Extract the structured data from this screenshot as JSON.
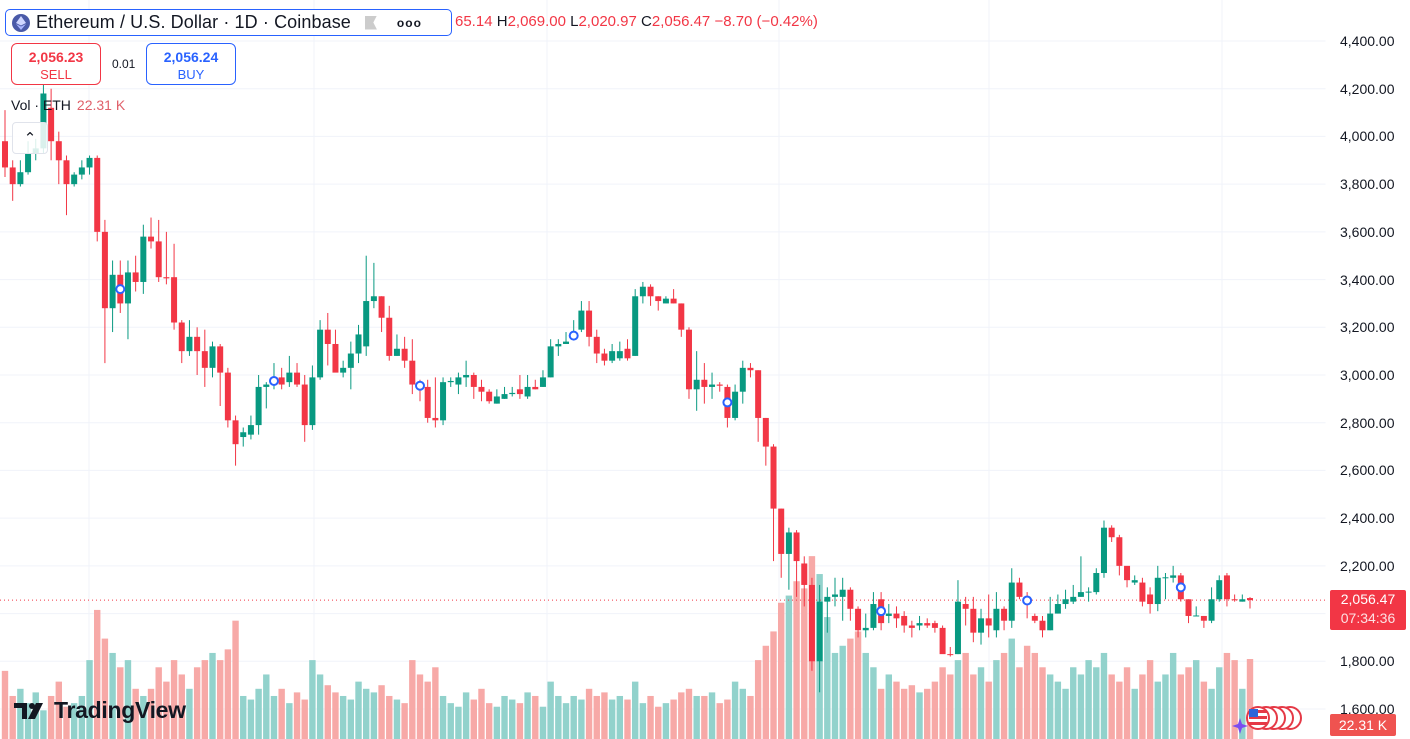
{
  "header": {
    "symbol_title": "Ethereum / U.S. Dollar · 1D · Coinbase",
    "more_icon": "more-icon",
    "ohlc": {
      "open_partial": "65.14",
      "high_label": "H",
      "high": "2,069.00",
      "low_label": "L",
      "low": "2,020.97",
      "close_label": "C",
      "close": "2,056.47",
      "change": "−8.70 (−0.42%)"
    }
  },
  "trade": {
    "sell_price": "2,056.23",
    "sell_label": "SELL",
    "spread": "0.01",
    "buy_price": "2,056.24",
    "buy_label": "BUY"
  },
  "volume_legend": {
    "label": "Vol · ETH",
    "value": "22.31 K"
  },
  "price_axis": {
    "labels": [
      "4,400.00",
      "4,200.00",
      "4,000.00",
      "3,800.00",
      "3,600.00",
      "3,400.00",
      "3,200.00",
      "3,000.00",
      "2,800.00",
      "2,600.00",
      "2,400.00",
      "2,200.00",
      "1,800.00",
      "1,600.00"
    ],
    "current_price": "2,056.47",
    "countdown": "07:34:36",
    "current_volume": "22.31 K"
  },
  "logo_text": "TradingView",
  "colors": {
    "up": "#089981",
    "down": "#f23645",
    "up_volume": "#92d2cc",
    "down_volume": "#f7a9a7",
    "event": "#2962ff"
  },
  "chart_data": {
    "type": "candlestick",
    "title": "Ethereum / U.S. Dollar · 1D · Coinbase",
    "ylim": [
      1600,
      4400
    ],
    "y_ticks": [
      1600,
      1800,
      2000,
      2200,
      2400,
      2600,
      2800,
      3000,
      3200,
      3400,
      3600,
      3800,
      4000,
      4200,
      4400
    ],
    "current_price": 2056.47,
    "event_indices": [
      15,
      35,
      54,
      74,
      94,
      114,
      133,
      153
    ],
    "candles_ohlc": [
      [
        3980,
        4110,
        3830,
        3870
      ],
      [
        3870,
        3900,
        3730,
        3800
      ],
      [
        3800,
        3900,
        3790,
        3850
      ],
      [
        3850,
        3980,
        3840,
        3930
      ],
      [
        3930,
        3990,
        3900,
        3950
      ],
      [
        3950,
        4230,
        3930,
        4180
      ],
      [
        4120,
        4200,
        3900,
        3980
      ],
      [
        3980,
        4020,
        3800,
        3900
      ],
      [
        3900,
        3920,
        3670,
        3800
      ],
      [
        3800,
        3850,
        3790,
        3840
      ],
      [
        3840,
        3900,
        3820,
        3870
      ],
      [
        3870,
        3920,
        3840,
        3910
      ],
      [
        3910,
        3920,
        3560,
        3600
      ],
      [
        3600,
        3650,
        3050,
        3280
      ],
      [
        3280,
        3480,
        3180,
        3420
      ],
      [
        3420,
        3480,
        3260,
        3300
      ],
      [
        3300,
        3480,
        3150,
        3430
      ],
      [
        3430,
        3500,
        3350,
        3390
      ],
      [
        3390,
        3630,
        3340,
        3580
      ],
      [
        3580,
        3660,
        3530,
        3560
      ],
      [
        3560,
        3650,
        3390,
        3410
      ],
      [
        3410,
        3600,
        3380,
        3405
      ],
      [
        3410,
        3550,
        3190,
        3220
      ],
      [
        3220,
        3230,
        3050,
        3100
      ],
      [
        3100,
        3230,
        3080,
        3160
      ],
      [
        3160,
        3200,
        3000,
        3100
      ],
      [
        3100,
        3190,
        2950,
        3030
      ],
      [
        3030,
        3140,
        2990,
        3120
      ],
      [
        3120,
        3130,
        2870,
        3010
      ],
      [
        3010,
        3030,
        2780,
        2810
      ],
      [
        2810,
        2830,
        2620,
        2710
      ],
      [
        2740,
        2780,
        2700,
        2760
      ],
      [
        2750,
        2830,
        2730,
        2790
      ],
      [
        2790,
        3000,
        2750,
        2950
      ],
      [
        2950,
        2970,
        2860,
        2960
      ],
      [
        2960,
        3050,
        2940,
        2990
      ],
      [
        2990,
        3030,
        2940,
        2960
      ],
      [
        2970,
        3080,
        2950,
        3010
      ],
      [
        3010,
        3050,
        2950,
        2960
      ],
      [
        2960,
        3000,
        2720,
        2790
      ],
      [
        2790,
        3040,
        2770,
        2990
      ],
      [
        2990,
        3230,
        2980,
        3190
      ],
      [
        3190,
        3260,
        3040,
        3130
      ],
      [
        3130,
        3190,
        3030,
        3010
      ],
      [
        3010,
        3060,
        2990,
        3030
      ],
      [
        3030,
        3140,
        2940,
        3090
      ],
      [
        3090,
        3210,
        3050,
        3170
      ],
      [
        3120,
        3500,
        3080,
        3310
      ],
      [
        3310,
        3470,
        3280,
        3330
      ],
      [
        3330,
        3330,
        3180,
        3240
      ],
      [
        3240,
        3290,
        3060,
        3080
      ],
      [
        3080,
        3170,
        3080,
        3110
      ],
      [
        3110,
        3160,
        3030,
        3060
      ],
      [
        3060,
        3150,
        2920,
        2960
      ],
      [
        2960,
        2980,
        2890,
        2950
      ],
      [
        2950,
        2980,
        2800,
        2820
      ],
      [
        2820,
        2990,
        2780,
        2810
      ],
      [
        2810,
        2990,
        2790,
        2970
      ],
      [
        2970,
        2990,
        2950,
        2975
      ],
      [
        2960,
        3010,
        2920,
        2990
      ],
      [
        2990,
        3060,
        2950,
        3000
      ],
      [
        3000,
        3010,
        2900,
        2950
      ],
      [
        2950,
        2980,
        2890,
        2930
      ],
      [
        2930,
        2940,
        2880,
        2890
      ],
      [
        2880,
        2940,
        2880,
        2910
      ],
      [
        2900,
        2950,
        2900,
        2920
      ],
      [
        2920,
        2950,
        2910,
        2925
      ],
      [
        2940,
        3000,
        2900,
        2920
      ],
      [
        2910,
        3000,
        2900,
        2950
      ],
      [
        2950,
        2980,
        2940,
        2940
      ],
      [
        2950,
        3020,
        2950,
        2990
      ],
      [
        2990,
        3150,
        2990,
        3120
      ],
      [
        3120,
        3150,
        3080,
        3130
      ],
      [
        3130,
        3180,
        3130,
        3140
      ],
      [
        3150,
        3230,
        3150,
        3180
      ],
      [
        3190,
        3310,
        3180,
        3270
      ],
      [
        3270,
        3310,
        3120,
        3160
      ],
      [
        3160,
        3190,
        3050,
        3090
      ],
      [
        3090,
        3110,
        3040,
        3060
      ],
      [
        3060,
        3130,
        3050,
        3100
      ],
      [
        3070,
        3140,
        3060,
        3100
      ],
      [
        3110,
        3150,
        3060,
        3070
      ],
      [
        3080,
        3360,
        3080,
        3330
      ],
      [
        3330,
        3390,
        3300,
        3370
      ],
      [
        3370,
        3380,
        3290,
        3330
      ],
      [
        3330,
        3330,
        3270,
        3310
      ],
      [
        3300,
        3330,
        3300,
        3320
      ],
      [
        3320,
        3360,
        3300,
        3300
      ],
      [
        3300,
        3300,
        3160,
        3190
      ],
      [
        3190,
        3200,
        2900,
        2940
      ],
      [
        2940,
        3100,
        2850,
        2980
      ],
      [
        2980,
        3050,
        2880,
        2950
      ],
      [
        2950,
        3010,
        2900,
        2960
      ],
      [
        2960,
        2970,
        2930,
        2955
      ],
      [
        2950,
        2960,
        2780,
        2820
      ],
      [
        2820,
        2960,
        2810,
        2930
      ],
      [
        2930,
        3060,
        2880,
        3030
      ],
      [
        3030,
        3050,
        2990,
        3020
      ],
      [
        3020,
        3020,
        2720,
        2820
      ],
      [
        2820,
        2820,
        2620,
        2700
      ],
      [
        2700,
        2710,
        2220,
        2440
      ],
      [
        2440,
        2440,
        2150,
        2250
      ],
      [
        2250,
        2360,
        2100,
        2340
      ],
      [
        2340,
        2350,
        2070,
        2220
      ],
      [
        2210,
        2240,
        2030,
        2120
      ],
      [
        2120,
        2150,
        1760,
        1800
      ],
      [
        1800,
        2120,
        1670,
        2050
      ],
      [
        2050,
        2110,
        1920,
        2070
      ],
      [
        2070,
        2150,
        2030,
        2080
      ],
      [
        2070,
        2150,
        1970,
        2100
      ],
      [
        2100,
        2110,
        1970,
        2020
      ],
      [
        2020,
        2030,
        1900,
        1930
      ],
      [
        1930,
        2000,
        1900,
        1940
      ],
      [
        1940,
        2090,
        1930,
        2040
      ],
      [
        2060,
        2090,
        1930,
        1960
      ],
      [
        1990,
        2040,
        1960,
        2000
      ],
      [
        2000,
        2030,
        1940,
        1980
      ],
      [
        1990,
        2010,
        1920,
        1950
      ],
      [
        1950,
        1970,
        1900,
        1940
      ],
      [
        1950,
        1990,
        1930,
        1960
      ],
      [
        1960,
        1980,
        1940,
        1950
      ],
      [
        1960,
        1970,
        1920,
        1940
      ],
      [
        1940,
        1950,
        1840,
        1830
      ],
      [
        1830,
        1860,
        1820,
        1828
      ],
      [
        1830,
        2140,
        1830,
        2050
      ],
      [
        2040,
        2070,
        1950,
        2020
      ],
      [
        2020,
        2070,
        1880,
        1920
      ],
      [
        1920,
        2020,
        1870,
        1980
      ],
      [
        1980,
        2080,
        1900,
        1950
      ],
      [
        1930,
        2090,
        1900,
        2020
      ],
      [
        2020,
        2030,
        1930,
        1970
      ],
      [
        1970,
        2190,
        1940,
        2130
      ],
      [
        2130,
        2150,
        2060,
        2070
      ],
      [
        2070,
        2090,
        1980,
        2040
      ],
      [
        1990,
        2000,
        1960,
        1970
      ],
      [
        1970,
        1990,
        1900,
        1930
      ],
      [
        1930,
        2070,
        1930,
        2000
      ],
      [
        2000,
        2080,
        2000,
        2040
      ],
      [
        2040,
        2100,
        2020,
        2060
      ],
      [
        2050,
        2120,
        2040,
        2070
      ],
      [
        2070,
        2240,
        2070,
        2090
      ],
      [
        2090,
        2110,
        2050,
        2092
      ],
      [
        2090,
        2190,
        2080,
        2170
      ],
      [
        2170,
        2390,
        2150,
        2360
      ],
      [
        2360,
        2370,
        2300,
        2320
      ],
      [
        2320,
        2330,
        2160,
        2200
      ],
      [
        2200,
        2190,
        2110,
        2140
      ],
      [
        2130,
        2160,
        2120,
        2140
      ],
      [
        2130,
        2150,
        2030,
        2050
      ],
      [
        2080,
        2110,
        2000,
        2040
      ],
      [
        2040,
        2200,
        2010,
        2150
      ],
      [
        2150,
        2170,
        2060,
        2152
      ],
      [
        2150,
        2200,
        2130,
        2160
      ],
      [
        2160,
        2170,
        2050,
        2060
      ],
      [
        2060,
        2060,
        1960,
        1990
      ],
      [
        1990,
        2030,
        1990,
        1992
      ],
      [
        1990,
        1990,
        1940,
        1970
      ],
      [
        1970,
        2110,
        1960,
        2060
      ],
      [
        2060,
        2160,
        2050,
        2140
      ],
      [
        2160,
        2170,
        2030,
        2060
      ],
      [
        2060,
        2080,
        2050,
        2058
      ],
      [
        2050,
        2080,
        2050,
        2060
      ],
      [
        2065,
        2069,
        2021,
        2056.47
      ]
    ],
    "volume_k": [
      19,
      12,
      14,
      10,
      13,
      8,
      12,
      16,
      9,
      10,
      12,
      22,
      36,
      28,
      24,
      20,
      22,
      14,
      12,
      14,
      20,
      16,
      22,
      18,
      14,
      20,
      22,
      24,
      22,
      25,
      33,
      12,
      11,
      14,
      18,
      12,
      14,
      10,
      13,
      11,
      22,
      18,
      15,
      13,
      12,
      11,
      16,
      14,
      13,
      15,
      12,
      11,
      10,
      22,
      18,
      16,
      20,
      12,
      10,
      9,
      13,
      11,
      14,
      10,
      9,
      12,
      11,
      10,
      13,
      12,
      9,
      16,
      12,
      10,
      12,
      11,
      14,
      12,
      13,
      11,
      12,
      11,
      16,
      10,
      12,
      9,
      10,
      11,
      13,
      14,
      12,
      12,
      13,
      10,
      11,
      16,
      14,
      12,
      22,
      26,
      30,
      38,
      40,
      44,
      42,
      51,
      46,
      34,
      24,
      26,
      28,
      30,
      24,
      20,
      14,
      18,
      16,
      14,
      15,
      13,
      14,
      16,
      20,
      18,
      22,
      24,
      18,
      20,
      16,
      22,
      24,
      28,
      20,
      26,
      24,
      20,
      18,
      16,
      14,
      20,
      18,
      22,
      20,
      24,
      18,
      16,
      20,
      14,
      18,
      22,
      16,
      18,
      24,
      18,
      20,
      22,
      16,
      14,
      20,
      24,
      22,
      14,
      22.31
    ]
  }
}
